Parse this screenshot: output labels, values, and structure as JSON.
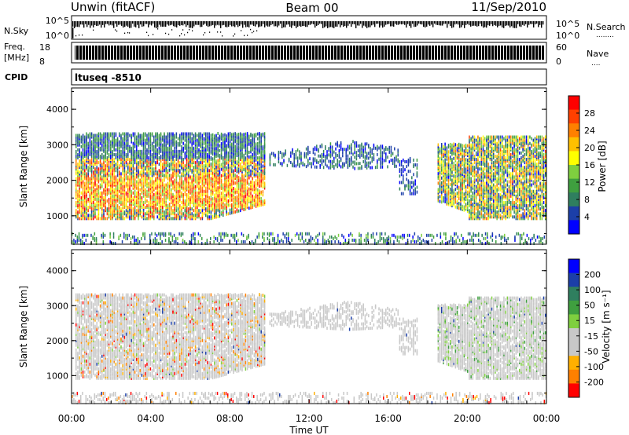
{
  "header": {
    "station": "Unwin (fitACF)",
    "beam": "Beam 00",
    "date": "11/Sep/2010"
  },
  "top_panel": {
    "left_label": "N.Sky",
    "left_ticks": [
      "10^5",
      "10^0"
    ],
    "right_ticks": [
      "10^5",
      "10^0"
    ],
    "right_label": "N.Search",
    "right_label_dots": "........"
  },
  "freq_panel": {
    "left_label_line1": "Freq.",
    "left_label_line2": "[MHz]",
    "left_ticks": [
      "18",
      "8"
    ],
    "right_ticks": [
      "60",
      "0"
    ],
    "right_label": "Nave",
    "right_label_dots": "....",
    "cpid_label": "CPID",
    "cpid_text": "ltuseq -8510"
  },
  "colors": {
    "power": [
      "#0000ff",
      "#1c3fa8",
      "#2f7f5f",
      "#3f9f3f",
      "#7fcf3f",
      "#ffff00",
      "#ffc000",
      "#ff8000",
      "#ff4000",
      "#ff0000"
    ],
    "velocity": [
      "#ff0000",
      "#ff8000",
      "#ffb000",
      "#c8c8c8",
      "#c8c8c8",
      "#7fcf3f",
      "#3f9f3f",
      "#2f7f5f",
      "#1c3fa8",
      "#0000ff"
    ]
  },
  "chart_data": [
    {
      "type": "heatmap",
      "title": "",
      "xlabel": "",
      "ylabel": "Slant Range [km]",
      "ylim": [
        200,
        4600
      ],
      "yticks": [
        "1000",
        "2000",
        "3000",
        "4000"
      ],
      "colorbar_label": "Power [dB]",
      "colorbar_ticks": [
        "4",
        "8",
        "12",
        "16",
        "20",
        "24",
        "28"
      ],
      "colorbar_range": [
        0,
        32
      ],
      "regions": [
        {
          "x": [
            0.2,
            9.8
          ],
          "y": [
            900,
            3300
          ],
          "value_range": [
            2,
            30
          ],
          "note_dense_band": [
            1200,
            2100
          ]
        },
        {
          "x": [
            10.0,
            17.5
          ],
          "y": [
            2200,
            3200
          ],
          "value_range": [
            2,
            10
          ]
        },
        {
          "x": [
            18.5,
            24.0
          ],
          "y": [
            900,
            3200
          ],
          "value_range": [
            2,
            26
          ]
        },
        {
          "x": [
            0.0,
            24.0
          ],
          "y": [
            200,
            500
          ],
          "value_range": [
            2,
            14
          ]
        }
      ]
    },
    {
      "type": "heatmap",
      "title": "",
      "xlabel": "Time UT",
      "ylabel": "Slant Range [km]",
      "ylim": [
        200,
        4600
      ],
      "yticks": [
        "1000",
        "2000",
        "3000",
        "4000"
      ],
      "xticks": [
        "00:00",
        "04:00",
        "08:00",
        "12:00",
        "16:00",
        "20:00",
        "00:00"
      ],
      "xlim": [
        0,
        24
      ],
      "colorbar_label": "Velocity [m s⁻¹]",
      "colorbar_ticks": [
        "200",
        "100",
        "50",
        "15",
        "-15",
        "-50",
        "-100",
        "-200"
      ],
      "regions": [
        {
          "x": [
            0.2,
            9.8
          ],
          "y": [
            900,
            3300
          ],
          "value_range": [
            -60,
            30
          ]
        },
        {
          "x": [
            10.0,
            17.5
          ],
          "y": [
            2200,
            3200
          ],
          "value_range": [
            -10,
            10
          ]
        },
        {
          "x": [
            18.5,
            24.0
          ],
          "y": [
            900,
            3200
          ],
          "value_range": [
            -15,
            60
          ]
        },
        {
          "x": [
            0.0,
            24.0
          ],
          "y": [
            200,
            500
          ],
          "value_range": [
            -80,
            10
          ]
        }
      ]
    }
  ]
}
